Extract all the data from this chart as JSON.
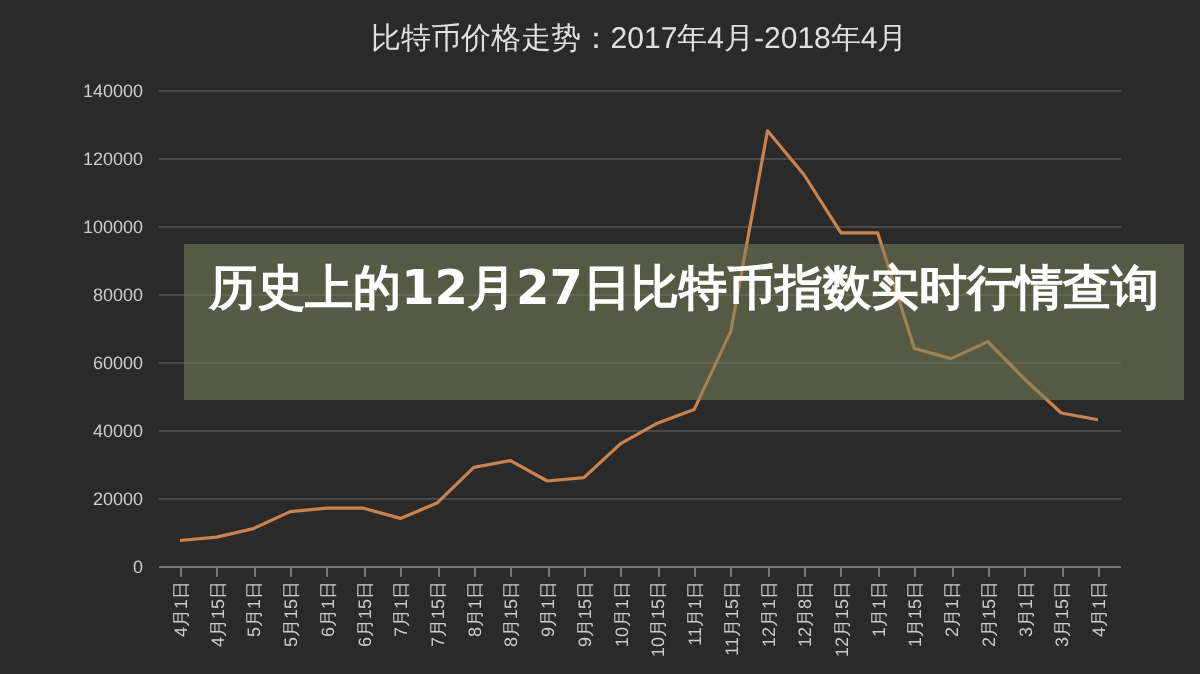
{
  "chart_data": {
    "type": "line",
    "title": "比特币价格走势：2017年4月-2018年4月",
    "annotations": [
      "历史上的12月27日比特币指数实时行情查询"
    ],
    "categories": [
      "4月1日",
      "4月15日",
      "5月1日",
      "5月15日",
      "6月1日",
      "6月15日",
      "7月1日",
      "7月15日",
      "8月1日",
      "8月15日",
      "9月1日",
      "9月15日",
      "10月1日",
      "10月15日",
      "11月1日",
      "11月15日",
      "12月1日",
      "12月8日",
      "12月15日",
      "1月1日",
      "1月15日",
      "2月1日",
      "2月15日",
      "3月1日",
      "3月15日",
      "4月1日"
    ],
    "series": [
      {
        "color": "#c8834f",
        "values": [
          7500,
          8500,
          11000,
          16000,
          17000,
          17000,
          14000,
          18500,
          29000,
          31000,
          25000,
          26000,
          36000,
          42000,
          46000,
          69000,
          128000,
          115000,
          98000,
          98000,
          64000,
          61000,
          66000,
          55000,
          45000,
          43000
        ]
      }
    ],
    "ylim": [
      0,
      140000
    ],
    "yticks": [
      0,
      20000,
      40000,
      60000,
      80000,
      100000,
      120000,
      140000
    ],
    "grid": "y",
    "marker": "none",
    "line_style": "solid"
  }
}
